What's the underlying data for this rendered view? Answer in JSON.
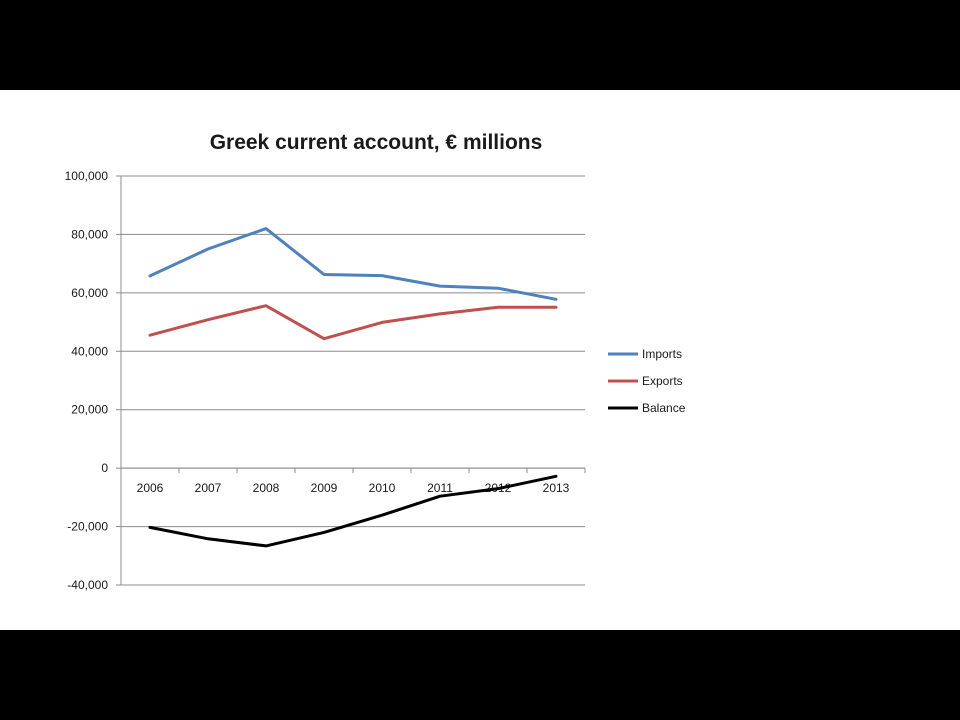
{
  "chart_data": {
    "type": "line",
    "title": "Greek current account, € millions",
    "categories": [
      "2006",
      "2007",
      "2008",
      "2009",
      "2010",
      "2011",
      "2012",
      "2013"
    ],
    "series": [
      {
        "name": "Imports",
        "color": "#4f81bd",
        "values": [
          65800,
          75000,
          82000,
          66300,
          65900,
          62300,
          61600,
          57800
        ]
      },
      {
        "name": "Exports",
        "color": "#c0504d",
        "values": [
          45500,
          50800,
          55600,
          44300,
          49900,
          52800,
          55100,
          55100
        ]
      },
      {
        "name": "Balance",
        "color": "#000000",
        "values": [
          -20300,
          -24200,
          -26600,
          -22000,
          -16100,
          -9600,
          -7000,
          -2800
        ]
      }
    ],
    "yticks": [
      "100,000",
      "80,000",
      "60,000",
      "40,000",
      "20,000",
      "0",
      "-20,000",
      "-40,000"
    ],
    "ylim": [
      -40000,
      100000
    ],
    "grid": true,
    "legend_position": "right"
  }
}
